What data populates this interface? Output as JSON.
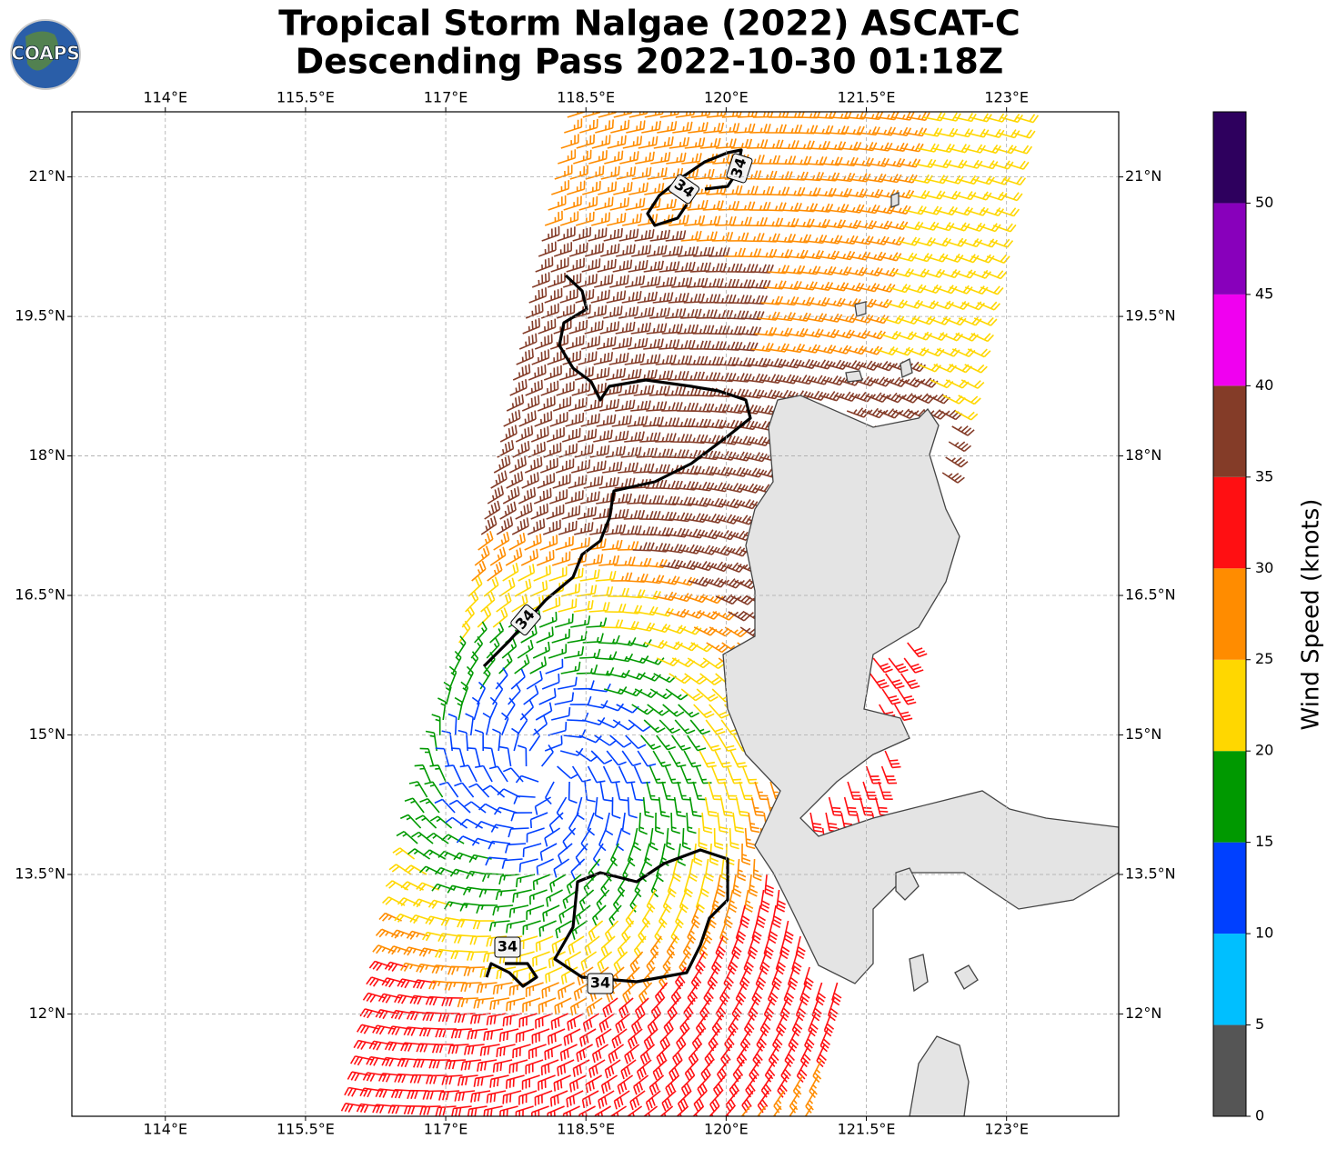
{
  "chart_data": {
    "type": "map",
    "title": [
      "Tropical Storm Nalgae (2022) ASCAT-C",
      "Descending Pass 2022-10-30 01:18Z"
    ],
    "logo": "COAPS",
    "xlim": [
      113.0,
      124.2
    ],
    "ylim": [
      10.9,
      21.7
    ],
    "xticks": [
      {
        "value": 114,
        "label": "114°E"
      },
      {
        "value": 115.5,
        "label": "115.5°E"
      },
      {
        "value": 117,
        "label": "117°E"
      },
      {
        "value": 118.5,
        "label": "118.5°E"
      },
      {
        "value": 120,
        "label": "120°E"
      },
      {
        "value": 121.5,
        "label": "121.5°E"
      },
      {
        "value": 123,
        "label": "123°E"
      }
    ],
    "yticks": [
      {
        "value": 12,
        "label": "12°N"
      },
      {
        "value": 13.5,
        "label": "13.5°N"
      },
      {
        "value": 15,
        "label": "15°N"
      },
      {
        "value": 16.5,
        "label": "16.5°N"
      },
      {
        "value": 18,
        "label": "18°N"
      },
      {
        "value": 19.5,
        "label": "19.5°N"
      },
      {
        "value": 21,
        "label": "21°N"
      }
    ],
    "grid": true,
    "contour_level": 34,
    "colorbar": {
      "label": "Wind Speed (knots)",
      "lim": [
        0,
        55
      ],
      "bounds": [
        0,
        5,
        10,
        15,
        20,
        25,
        30,
        35,
        40,
        45,
        50,
        55
      ],
      "ticks": [
        0,
        5,
        10,
        15,
        20,
        25,
        30,
        35,
        40,
        45,
        50
      ],
      "colors": [
        "#555555",
        "#00bfff",
        "#0040ff",
        "#009900",
        "#ffd700",
        "#ff8c00",
        "#ff0f12",
        "#843c28",
        "#f000f0",
        "#8800bb",
        "#2e005e"
      ]
    }
  }
}
